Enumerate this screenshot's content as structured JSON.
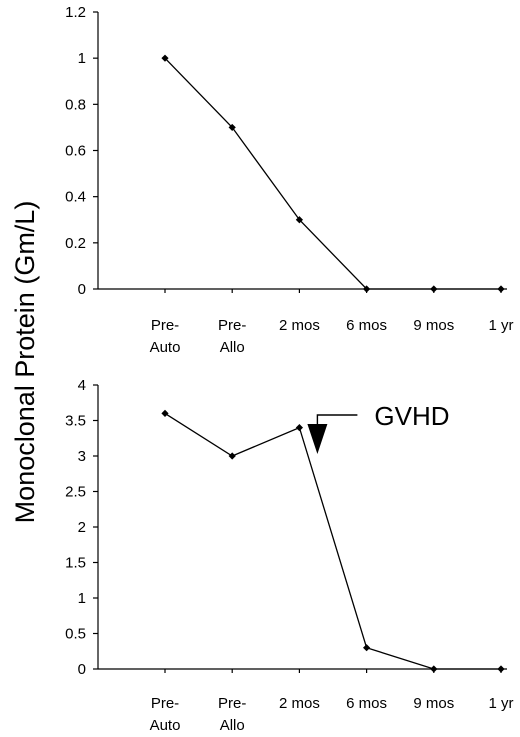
{
  "figure": {
    "ylabel": "Monoclonal Protein (Gm/L)"
  },
  "chart_data": [
    {
      "type": "line",
      "categories": [
        [
          "Pre-",
          "Auto"
        ],
        [
          "Pre-",
          "Allo"
        ],
        [
          "2 mos"
        ],
        [
          "6 mos"
        ],
        [
          "9 mos"
        ],
        [
          "1 yr"
        ]
      ],
      "values": [
        1.0,
        0.7,
        0.3,
        0,
        0,
        0
      ],
      "ylim": [
        0,
        1.2
      ],
      "yticks": [
        0,
        0.2,
        0.4,
        0.6,
        0.8,
        1,
        1.2
      ],
      "ytick_labels": [
        "0",
        "0.2",
        "0.4",
        "0.6",
        "0.8",
        "1",
        "1.2"
      ],
      "grid": false,
      "legend": "none",
      "line_color": "#000000",
      "marker": "diamond"
    },
    {
      "type": "line",
      "categories": [
        [
          "Pre-",
          "Auto"
        ],
        [
          "Pre-",
          "Allo"
        ],
        [
          "2 mos"
        ],
        [
          "6 mos"
        ],
        [
          "9 mos"
        ],
        [
          "1 yr"
        ]
      ],
      "values": [
        3.6,
        3.0,
        3.4,
        0.3,
        0,
        0
      ],
      "ylim": [
        0,
        4
      ],
      "yticks": [
        0,
        0.5,
        1,
        1.5,
        2,
        2.5,
        3,
        3.5,
        4
      ],
      "ytick_labels": [
        "0",
        "0.5",
        "1",
        "1.5",
        "2",
        "2.5",
        "3",
        "3.5",
        "4"
      ],
      "grid": false,
      "legend": "none",
      "line_color": "#000000",
      "marker": "diamond",
      "annotations": [
        {
          "text": "GVHD",
          "points_to_category": "2 mos"
        }
      ]
    }
  ]
}
